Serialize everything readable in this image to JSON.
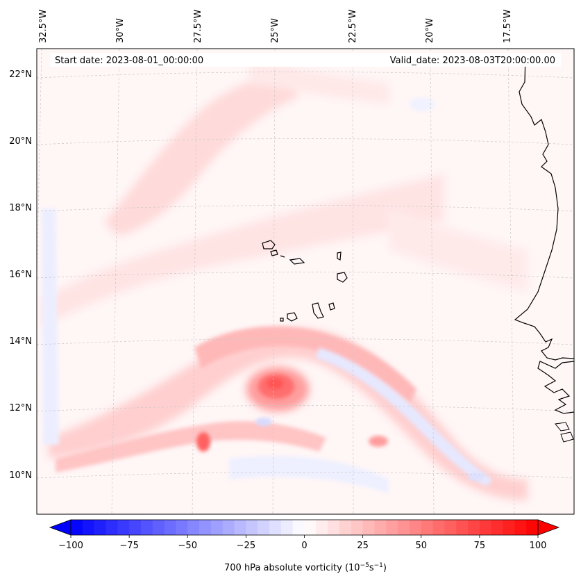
{
  "map": {
    "start_date": "Start date: 2023-08-01_00:00:00",
    "valid_date": "Valid_date: 2023-08-03T20:00:00.00",
    "lon_labels": [
      "32.5°W",
      "30°W",
      "27.5°W",
      "25°W",
      "22.5°W",
      "20°W",
      "17.5°W"
    ],
    "lat_labels": [
      "22°N",
      "20°N",
      "18°N",
      "16°N",
      "14°N",
      "12°N",
      "10°N"
    ],
    "colorbar": {
      "ticks": [
        "−100",
        "−75",
        "−50",
        "−25",
        "0",
        "25",
        "50",
        "75",
        "100"
      ],
      "label": "700 hPa absolute vorticity (10",
      "label_exp1": "−5",
      "label_mid": "s",
      "label_exp2": "−1",
      "label_end": ")",
      "min": -100,
      "max": 100,
      "levels": 40
    },
    "colors": {
      "neg": "#0000ff",
      "pos": "#ff0000",
      "mid": "#ffffff",
      "coast": "#000000",
      "grid": "#c8c8c8"
    }
  }
}
